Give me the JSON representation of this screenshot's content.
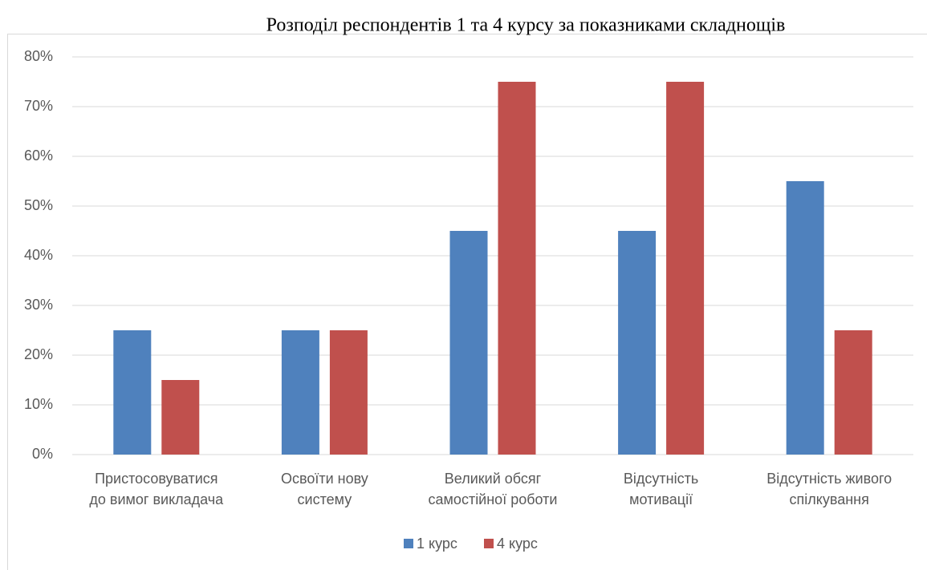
{
  "chart_data": {
    "type": "bar",
    "title": "Розподіл респондентів 1 та 4 курсу за показниками складнощів",
    "categories": [
      "Пристосовуватися до вимог викладача",
      "Освоїти нову систему",
      "Великий обсяг самостійної роботи",
      "Відсутність мотивації",
      "Відсутність живого спілкування"
    ],
    "series": [
      {
        "name": "1 курс",
        "color": "#4f81bd",
        "values": [
          25,
          25,
          45,
          45,
          55
        ]
      },
      {
        "name": "4 курс",
        "color": "#c0504d",
        "values": [
          15,
          25,
          75,
          75,
          25
        ]
      }
    ],
    "ylim": [
      0,
      80
    ],
    "yticks": [
      {
        "value": 0,
        "label": "0%"
      },
      {
        "value": 10,
        "label": "10%"
      },
      {
        "value": 20,
        "label": "20%"
      },
      {
        "value": 30,
        "label": "30%"
      },
      {
        "value": 40,
        "label": "40%"
      },
      {
        "value": 50,
        "label": "50%"
      },
      {
        "value": 60,
        "label": "60%"
      },
      {
        "value": 70,
        "label": "70%"
      },
      {
        "value": 80,
        "label": "80%"
      }
    ],
    "grid": true,
    "legend": "bottom"
  }
}
